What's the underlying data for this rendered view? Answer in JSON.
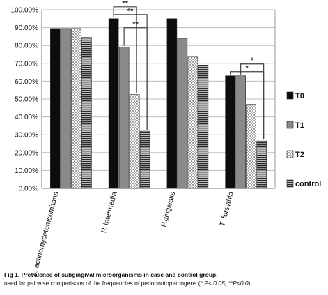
{
  "chart_data": {
    "type": "bar",
    "categories": [
      "A. actinomycetemcomitans",
      "P. intermedia",
      "P.gingivalis",
      "T. forsythia"
    ],
    "series": [
      {
        "name": "T0",
        "values": [
          89.5,
          95.0,
          95.0,
          63.0
        ],
        "pattern": "solid-black"
      },
      {
        "name": "T1",
        "values": [
          89.5,
          79.0,
          84.0,
          63.0
        ],
        "pattern": "solid-gray"
      },
      {
        "name": "T2",
        "values": [
          89.5,
          52.5,
          73.5,
          47.0
        ],
        "pattern": "checker"
      },
      {
        "name": "control",
        "values": [
          84.5,
          32.0,
          69.0,
          26.5
        ],
        "pattern": "horizontal-stripes"
      }
    ],
    "ylim": [
      0,
      100
    ],
    "yticks": [
      "0.00%",
      "10.00%",
      "20.00%",
      "30.00%",
      "40.00%",
      "50.00%",
      "60.00%",
      "70.00%",
      "80.00%",
      "90.00%",
      "100.00%"
    ],
    "ytick_values": [
      0,
      10,
      20,
      30,
      40,
      50,
      60,
      70,
      80,
      90,
      100
    ],
    "grid": true,
    "legend_position": "right",
    "significance": [
      {
        "category": "P. intermedia",
        "from": "T0",
        "to": "control",
        "label": "**"
      },
      {
        "category": "P. intermedia",
        "from": "T0",
        "to": "T2",
        "label": "**"
      },
      {
        "category": "P. intermedia",
        "from": "T1",
        "to": "control",
        "label": "**"
      },
      {
        "category": "T. forsythia",
        "from": "T0",
        "to": "control",
        "label": "*"
      },
      {
        "category": "T. forsythia",
        "from": "T1",
        "to": "control",
        "label": "*"
      }
    ]
  },
  "caption": {
    "fig_label": "Fig 1.",
    "bold_text": "Prevalence of subgingival microorganisms in case and control group.",
    "line2_start": "used for pairwise comparisons of the frequencies of periodontopathogens (",
    "p1": "* P< 0.05,",
    "p2": "**P<0.0",
    "line2_end": ")."
  },
  "colors": {
    "T0": "#0d0d0d",
    "T1": "#8a8a8a",
    "T2_a": "#ffffff",
    "T2_b": "#9a9a9a",
    "control_stripe": "#2a2a2a",
    "grid": "#bdbdbd",
    "bracket": "#444444"
  }
}
